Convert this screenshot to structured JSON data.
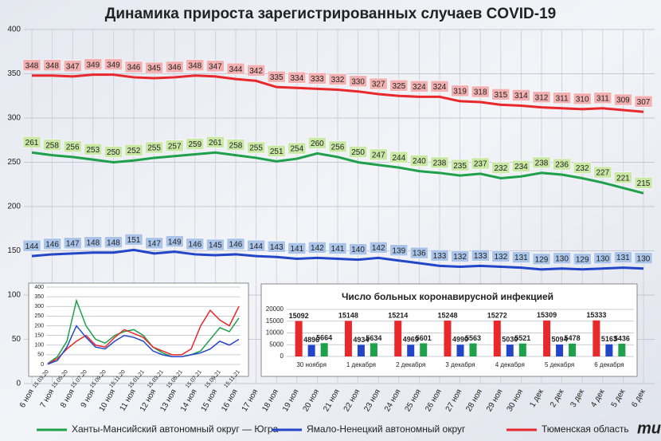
{
  "chart_data": [
    {
      "type": "line",
      "title": "Динамика прироста зарегистрированных случаев COVID-19",
      "categories": [
        "6 ноя",
        "7 ноя",
        "8 ноя",
        "9 ноя",
        "10 ноя",
        "11 ноя",
        "12 ноя",
        "13 ноя",
        "14 ноя",
        "15 ноя",
        "16 ноя",
        "17 ноя",
        "18 ноя",
        "19 ноя",
        "20 ноя",
        "21 ноя",
        "22 ноя",
        "23 ноя",
        "24 ноя",
        "25 ноя",
        "26 ноя",
        "27 ноя",
        "28 ноя",
        "29 ноя",
        "30 ноя",
        "1 дек",
        "2 дек",
        "3 дек",
        "4 дек",
        "5 дек",
        "6 дек"
      ],
      "series": [
        {
          "name": "Ханты-Мансийский автономный округ — Югра",
          "color": "#1fa04a",
          "label_color": "#c9e8a4",
          "values": [
            261,
            258,
            256,
            253,
            250,
            252,
            255,
            257,
            259,
            261,
            258,
            255,
            251,
            254,
            260,
            256,
            250,
            247,
            244,
            240,
            238,
            235,
            237,
            232,
            234,
            238,
            236,
            232,
            227,
            221,
            215
          ]
        },
        {
          "name": "Ямало-Ненецкий автономный округ",
          "color": "#2346c8",
          "label_color": "#a9c4e8",
          "values": [
            144,
            146,
            147,
            148,
            148,
            151,
            147,
            149,
            146,
            145,
            146,
            144,
            143,
            141,
            142,
            141,
            140,
            142,
            139,
            136,
            133,
            132,
            133,
            132,
            131,
            129,
            130,
            129,
            130,
            131,
            130
          ]
        },
        {
          "name": "Тюменская область",
          "color": "#e8282b",
          "label_color": "#f2b0b0",
          "values": [
            348,
            348,
            347,
            349,
            349,
            346,
            345,
            346,
            348,
            347,
            344,
            342,
            335,
            334,
            333,
            332,
            330,
            327,
            325,
            324,
            324,
            319,
            318,
            315,
            314,
            312,
            311,
            310,
            311,
            309,
            307
          ]
        }
      ],
      "ylim": [
        0,
        400
      ],
      "yticks": [
        0,
        50,
        100,
        150,
        200,
        250,
        300,
        350,
        400
      ],
      "grid": true,
      "legend": "bottom"
    },
    {
      "type": "line",
      "categories": [
        "15.03.20",
        null,
        "15.05.20",
        null,
        "15.07.20",
        null,
        "15.09.20",
        null,
        "15.11.20",
        null,
        "15.01.21",
        null,
        "15.03.21",
        null,
        "15.05.21",
        null,
        "15.07.21",
        null,
        "15.09.21",
        null,
        "15.11.21"
      ],
      "series": [
        {
          "color": "#1fa04a",
          "values": [
            5,
            40,
            120,
            330,
            200,
            130,
            110,
            150,
            170,
            180,
            150,
            90,
            60,
            40,
            40,
            50,
            70,
            130,
            190,
            170,
            240
          ]
        },
        {
          "color": "#e8282b",
          "values": [
            3,
            30,
            80,
            120,
            150,
            100,
            90,
            140,
            180,
            160,
            140,
            90,
            70,
            50,
            50,
            80,
            200,
            280,
            230,
            200,
            300
          ]
        },
        {
          "color": "#2346c8",
          "values": [
            2,
            20,
            90,
            200,
            140,
            90,
            80,
            120,
            150,
            140,
            120,
            70,
            50,
            40,
            40,
            50,
            60,
            80,
            120,
            100,
            130
          ]
        }
      ],
      "ylim": [
        0,
        400
      ],
      "yticks": [
        0,
        50,
        100,
        150,
        200,
        250,
        300,
        350,
        400
      ],
      "grid": true
    },
    {
      "type": "bar",
      "title": "Число больных коронавирусной инфекцией",
      "categories": [
        "30 ноября",
        "1 декабря",
        "2 декабря",
        "3 декабря",
        "4 декабря",
        "5 декабря",
        "6 декабря"
      ],
      "series": [
        {
          "color": "#e8282b",
          "values": [
            15092,
            15148,
            15214,
            15248,
            15272,
            15309,
            15333
          ]
        },
        {
          "color": "#2346c8",
          "values": [
            4896,
            4934,
            4969,
            4990,
            5030,
            5094,
            5163
          ]
        },
        {
          "color": "#1fa04a",
          "values": [
            5664,
            5634,
            5601,
            5563,
            5521,
            5478,
            5436
          ]
        }
      ],
      "ylim": [
        0,
        20000
      ],
      "yticks": [
        0,
        5000,
        10000,
        15000,
        20000
      ],
      "grid": true
    }
  ]
}
